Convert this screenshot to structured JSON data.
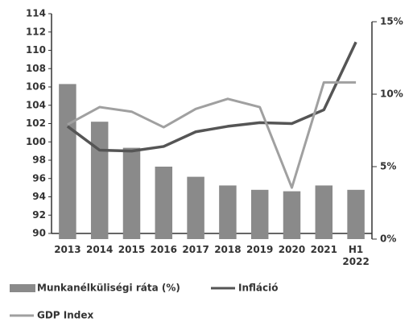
{
  "chart_data": {
    "type": "bar-line",
    "categories": [
      "2013",
      "2014",
      "2015",
      "2016",
      "2017",
      "2018",
      "2019",
      "2020",
      "2021",
      "H1 2022"
    ],
    "series": [
      {
        "name": "Munkanélküliségi ráta (%)",
        "type": "bar",
        "axis": "y2",
        "color": "#8a8a8a",
        "values": [
          10.7,
          8.1,
          6.3,
          5.0,
          4.3,
          3.7,
          3.4,
          3.3,
          3.7,
          3.4
        ]
      },
      {
        "name": "Infláció",
        "type": "line",
        "axis": "y",
        "color": "#555555",
        "values": [
          101.7,
          99.1,
          99.0,
          99.5,
          101.1,
          101.7,
          102.1,
          102.0,
          103.5,
          110.9
        ]
      },
      {
        "name": "GDP Index",
        "type": "line",
        "axis": "y",
        "color": "#a0a0a0",
        "values": [
          101.9,
          103.8,
          103.3,
          101.6,
          103.6,
          104.7,
          103.8,
          95.0,
          106.5,
          106.5
        ]
      }
    ],
    "ylim": [
      90,
      114
    ],
    "yticks": [
      90,
      92,
      94,
      96,
      98,
      100,
      102,
      104,
      106,
      108,
      110,
      112,
      114
    ],
    "y2lim": [
      0,
      15
    ],
    "y2ticks": [
      {
        "value": 0,
        "label": "0%"
      },
      {
        "value": 5,
        "label": "5%"
      },
      {
        "value": 10,
        "label": "10%"
      },
      {
        "value": 15,
        "label": "15%"
      }
    ]
  }
}
